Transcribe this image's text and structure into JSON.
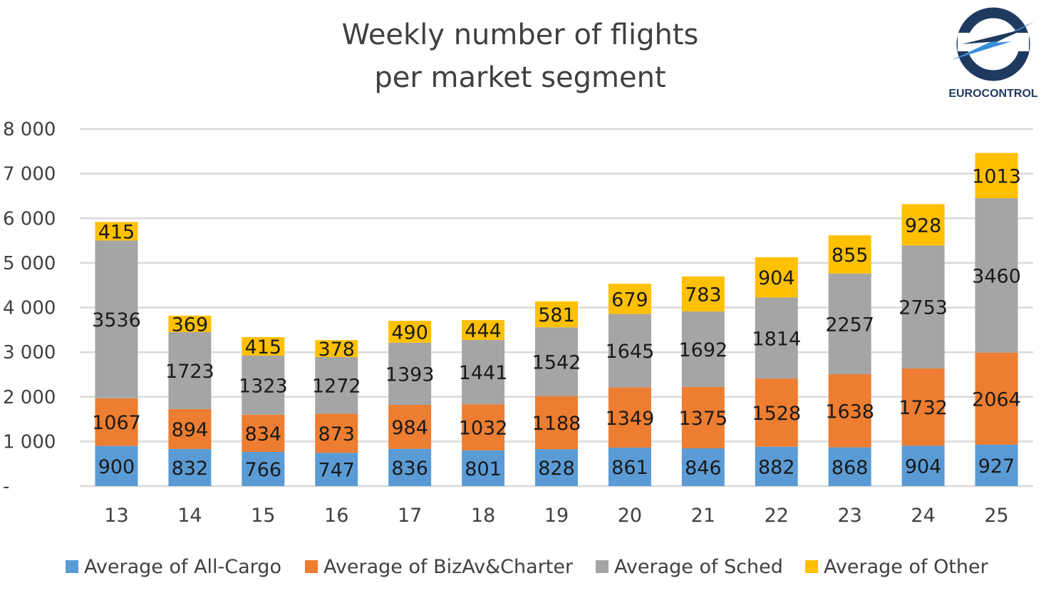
{
  "chart_data": {
    "type": "bar",
    "stacked": true,
    "title_lines": [
      "Weekly number of flights",
      "per market segment"
    ],
    "xlabel": "",
    "ylabel": "",
    "ylim": [
      0,
      8000
    ],
    "y_ticks": [
      {
        "value": 0,
        "label": "-"
      },
      {
        "value": 1000,
        "label": "1 000"
      },
      {
        "value": 2000,
        "label": "2 000"
      },
      {
        "value": 3000,
        "label": "3 000"
      },
      {
        "value": 4000,
        "label": "4 000"
      },
      {
        "value": 5000,
        "label": "5 000"
      },
      {
        "value": 6000,
        "label": "6 000"
      },
      {
        "value": 7000,
        "label": "7 000"
      },
      {
        "value": 8000,
        "label": "8 000"
      }
    ],
    "grid": true,
    "legend_position": "bottom",
    "categories": [
      "13",
      "14",
      "15",
      "16",
      "17",
      "18",
      "19",
      "20",
      "21",
      "22",
      "23",
      "24",
      "25"
    ],
    "series": [
      {
        "name": "Average of All-Cargo",
        "color": "#5b9bd5",
        "label_color": "#1a1a1a",
        "values": [
          900,
          832,
          766,
          747,
          836,
          801,
          828,
          861,
          846,
          882,
          868,
          904,
          927
        ]
      },
      {
        "name": "Average of BizAv&Charter",
        "color": "#ed7d31",
        "label_color": "#1a1a1a",
        "values": [
          1067,
          894,
          834,
          873,
          984,
          1032,
          1188,
          1349,
          1375,
          1528,
          1638,
          1732,
          2064
        ]
      },
      {
        "name": "Average of Sched",
        "color": "#a5a5a5",
        "label_color": "#1a1a1a",
        "values": [
          3536,
          1723,
          1323,
          1272,
          1393,
          1441,
          1542,
          1645,
          1692,
          1814,
          2257,
          2753,
          3460
        ]
      },
      {
        "name": "Average of Other",
        "color": "#ffc000",
        "label_color": "#1a1a1a",
        "values": [
          415,
          369,
          415,
          378,
          490,
          444,
          581,
          679,
          783,
          904,
          855,
          928,
          1013
        ]
      }
    ]
  },
  "logo": {
    "text": "EUROCONTROL",
    "icon": "eurocontrol-logo-icon",
    "colors": {
      "ring": "#1f3a5f",
      "swoosh": "#3a8fd9"
    }
  }
}
